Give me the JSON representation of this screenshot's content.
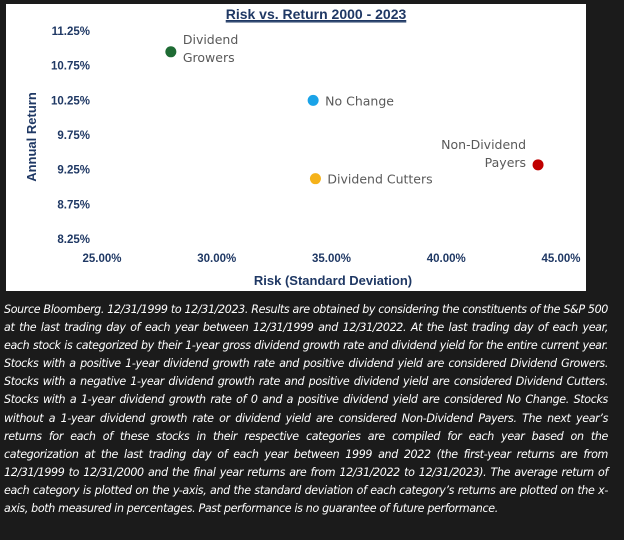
{
  "chart_data": {
    "type": "scatter",
    "title": "Risk vs. Return 2000 - 2023",
    "xlabel": "Risk (Standard Deviation)",
    "ylabel": "Annual Return",
    "xlim": [
      25,
      45
    ],
    "ylim": [
      8.25,
      11.25
    ],
    "x_ticks": [
      "25.00%",
      "30.00%",
      "35.00%",
      "40.00%",
      "45.00%"
    ],
    "y_ticks": [
      "11.25%",
      "10.75%",
      "10.25%",
      "9.75%",
      "9.25%",
      "8.75%",
      "8.25%"
    ],
    "grid": false,
    "legend": "none",
    "points": [
      {
        "label_lines": [
          "Dividend",
          "Growers"
        ],
        "x": 28.0,
        "y": 10.95,
        "color": "#1e6b34"
      },
      {
        "label_lines": [
          "No Change"
        ],
        "x": 34.2,
        "y": 10.25,
        "color": "#1aa3e8"
      },
      {
        "label_lines": [
          "Dividend Cutters"
        ],
        "x": 34.3,
        "y": 9.12,
        "color": "#f5b21a"
      },
      {
        "label_lines": [
          "Non-Dividend",
          "Payers"
        ],
        "x": 44.0,
        "y": 9.32,
        "color": "#c00000"
      }
    ]
  },
  "footnote": "Source Bloomberg. 12/31/1999 to 12/31/2023. Results are obtained by considering the constituents of the S&P 500 at the last trading day of each year between 12/31/1999 and 12/31/2022. At the last trading day of each year, each stock is categorized by their 1-year gross dividend growth rate and dividend yield for the entire current year. Stocks with a positive 1-year dividend growth rate and positive dividend yield are considered Dividend Growers. Stocks with a negative 1-year dividend growth rate and positive dividend yield are considered Dividend Cutters. Stocks with a 1-year dividend growth rate of 0 and a positive dividend yield are considered No Change. Stocks without a 1-year dividend growth rate or dividend yield are considered Non-Dividend Payers. The next year’s returns for each of these stocks in their respective categories are compiled for each year based on the categorization at the last trading day of each year between 1999 and 2022 (the first-year returns are from 12/31/1999 to 12/31/2000 and the final year returns are from 12/31/2022 to 12/31/2023). The average return of each category is plotted on the y-axis, and the standard deviation of each category’s returns are plotted on the x-axis, both measured in percentages. Past performance is no guarantee of future performance."
}
